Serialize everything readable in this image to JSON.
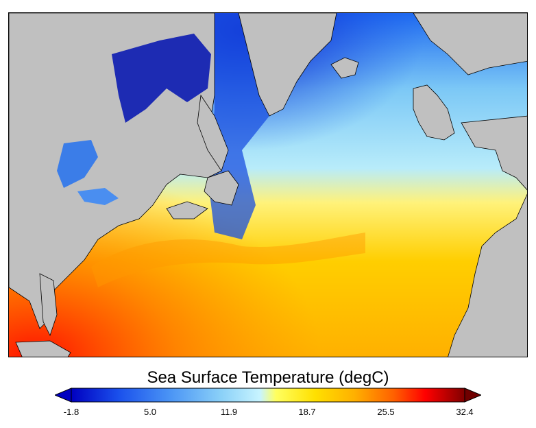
{
  "map": {
    "title": "Sea Surface Temperature (degC)",
    "land_color": "#c0c0c0",
    "colormap": [
      "#0000a0",
      "#0030e0",
      "#2b6cf5",
      "#5aa8f5",
      "#9edcf8",
      "#ffff80",
      "#ffe000",
      "#ffb000",
      "#ff6000",
      "#ff0000",
      "#b00000",
      "#700000"
    ]
  },
  "colorbar": {
    "min": -1.8,
    "max": 32.4,
    "ticks": [
      "-1.8",
      "5.0",
      "11.9",
      "18.7",
      "25.5",
      "32.4"
    ],
    "extend": "both"
  }
}
